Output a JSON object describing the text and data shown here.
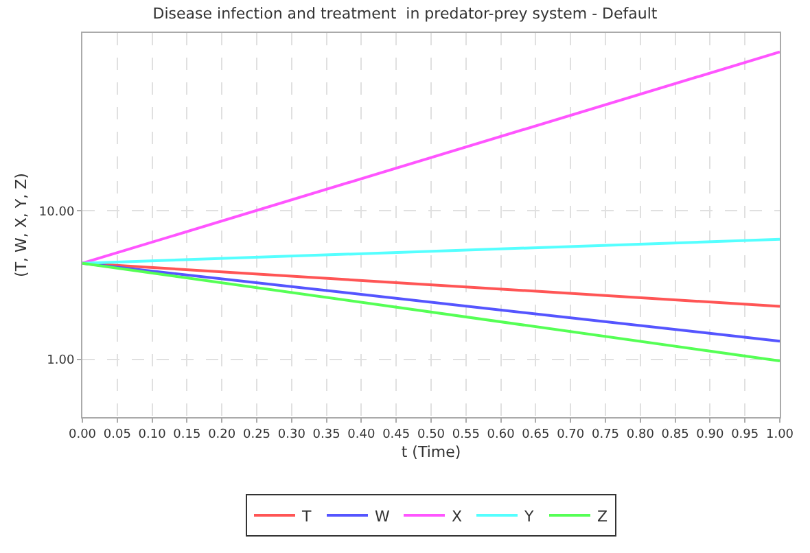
{
  "chart_data": {
    "type": "line",
    "title": "Disease infection and treatment  in predator-prey system - Default",
    "xlabel": "t (Time)",
    "ylabel": "(T, W, X, Y, Z)",
    "x": [
      0,
      1
    ],
    "xlim": [
      0,
      1
    ],
    "xticks": [
      {
        "value": 0,
        "label": "0.00"
      },
      {
        "value": 0.05,
        "label": "0.05"
      },
      {
        "value": 0.1,
        "label": "0.10"
      },
      {
        "value": 0.15,
        "label": "0.15"
      },
      {
        "value": 0.2,
        "label": "0.20"
      },
      {
        "value": 0.25,
        "label": "0.25"
      },
      {
        "value": 0.3,
        "label": "0.30"
      },
      {
        "value": 0.35,
        "label": "0.35"
      },
      {
        "value": 0.4,
        "label": "0.40"
      },
      {
        "value": 0.45,
        "label": "0.45"
      },
      {
        "value": 0.5,
        "label": "0.50"
      },
      {
        "value": 0.55,
        "label": "0.55"
      },
      {
        "value": 0.6,
        "label": "0.60"
      },
      {
        "value": 0.65,
        "label": "0.65"
      },
      {
        "value": 0.7,
        "label": "0.70"
      },
      {
        "value": 0.75,
        "label": "0.75"
      },
      {
        "value": 0.8,
        "label": "0.80"
      },
      {
        "value": 0.85,
        "label": "0.85"
      },
      {
        "value": 0.9,
        "label": "0.90"
      },
      {
        "value": 0.95,
        "label": "0.95"
      },
      {
        "value": 1,
        "label": "1.00"
      }
    ],
    "log": true,
    "ylim": [
      0.41,
      157
    ],
    "yticks": [
      {
        "value": 1,
        "label": "1.00"
      },
      {
        "value": 10,
        "label": "10.00"
      }
    ],
    "grid": true,
    "legend": "bottom",
    "marker": "none",
    "line_style": "solid",
    "series": [
      {
        "name": "T",
        "color": "#ff5555",
        "values": [
          4.44,
          2.28
        ]
      },
      {
        "name": "W",
        "color": "#5555ff",
        "values": [
          4.44,
          1.33
        ]
      },
      {
        "name": "X",
        "color": "#ff55ff",
        "values": [
          4.44,
          117
        ]
      },
      {
        "name": "Y",
        "color": "#55ffff",
        "values": [
          4.44,
          6.43
        ]
      },
      {
        "name": "Z",
        "color": "#55ff55",
        "values": [
          4.44,
          0.98
        ]
      }
    ]
  }
}
